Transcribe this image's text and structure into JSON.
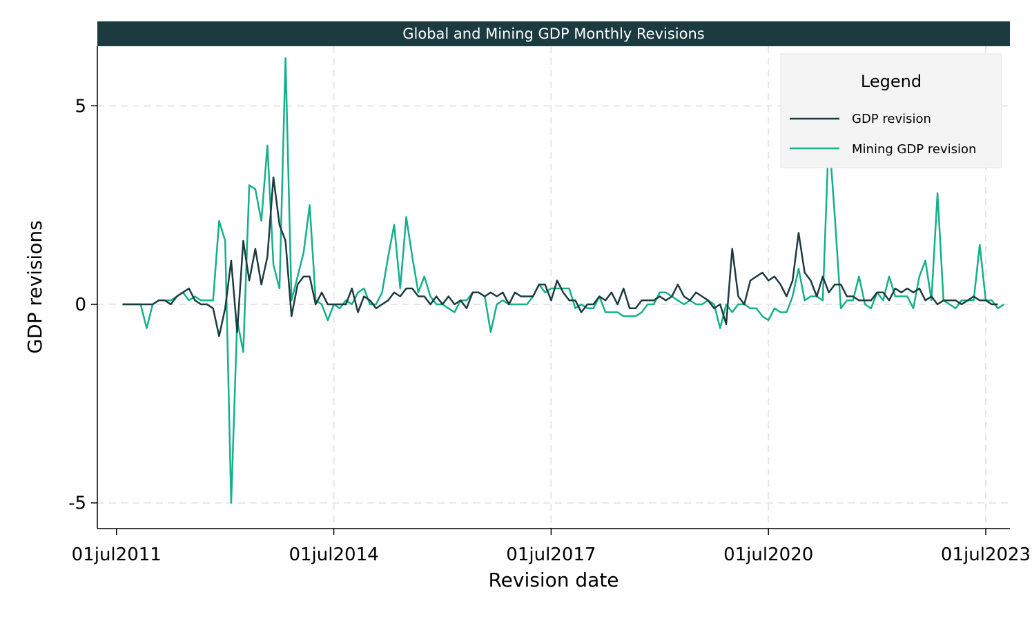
{
  "chart_data": {
    "type": "line",
    "title": "Global and Mining GDP Monthly Revisions",
    "xlabel": "Revision date",
    "ylabel": "GDP revisions",
    "x_ticks": [
      "01jul2011",
      "01jul2014",
      "01jul2017",
      "01jul2020",
      "01jul2023"
    ],
    "y_ticks": [
      "-5",
      "0",
      "5"
    ],
    "ylim": [
      -5.3,
      6.5
    ],
    "xlim": [
      "2011-06",
      "2023-11"
    ],
    "grid": true,
    "legend": {
      "title": "Legend",
      "position": "top-right"
    },
    "colors": {
      "title_bar": "#1b3b40",
      "gdp": "#1b3b40",
      "mining": "#13b089",
      "grid": "#e6e6e6",
      "legend_bg": "#f4f4f4"
    },
    "series": [
      {
        "name": "GDP revision",
        "key": "gdp",
        "points": [
          [
            "2011-08",
            0
          ],
          [
            "2011-09",
            0
          ],
          [
            "2011-10",
            0
          ],
          [
            "2011-11",
            0
          ],
          [
            "2011-12",
            0
          ],
          [
            "2012-01",
            0
          ],
          [
            "2012-02",
            0.1
          ],
          [
            "2012-03",
            0.1
          ],
          [
            "2012-04",
            0
          ],
          [
            "2012-05",
            0.2
          ],
          [
            "2012-06",
            0.3
          ],
          [
            "2012-07",
            0.4
          ],
          [
            "2012-08",
            0.1
          ],
          [
            "2012-09",
            0
          ],
          [
            "2012-10",
            0
          ],
          [
            "2012-11",
            -0.1
          ],
          [
            "2012-12",
            -0.8
          ],
          [
            "2013-01",
            -0.1
          ],
          [
            "2013-02",
            1.1
          ],
          [
            "2013-03",
            -0.7
          ],
          [
            "2013-04",
            1.6
          ],
          [
            "2013-05",
            0.6
          ],
          [
            "2013-06",
            1.4
          ],
          [
            "2013-07",
            0.5
          ],
          [
            "2013-08",
            1.2
          ],
          [
            "2013-09",
            3.2
          ],
          [
            "2013-10",
            2
          ],
          [
            "2013-11",
            1.6
          ],
          [
            "2013-12",
            -0.3
          ],
          [
            "2014-01",
            0.5
          ],
          [
            "2014-02",
            0.7
          ],
          [
            "2014-03",
            0.7
          ],
          [
            "2014-04",
            0
          ],
          [
            "2014-05",
            0.3
          ],
          [
            "2014-06",
            0
          ],
          [
            "2014-07",
            0
          ],
          [
            "2014-08",
            0
          ],
          [
            "2014-09",
            0
          ],
          [
            "2014-10",
            0.4
          ],
          [
            "2014-11",
            -0.2
          ],
          [
            "2014-12",
            0.2
          ],
          [
            "2015-01",
            0.1
          ],
          [
            "2015-02",
            -0.1
          ],
          [
            "2015-03",
            0
          ],
          [
            "2015-04",
            0.1
          ],
          [
            "2015-05",
            0.3
          ],
          [
            "2015-06",
            0.2
          ],
          [
            "2015-07",
            0.4
          ],
          [
            "2015-08",
            0.4
          ],
          [
            "2015-09",
            0.2
          ],
          [
            "2015-10",
            0.2
          ],
          [
            "2015-11",
            0
          ],
          [
            "2015-12",
            0.2
          ],
          [
            "2016-01",
            0
          ],
          [
            "2016-02",
            0.2
          ],
          [
            "2016-03",
            0
          ],
          [
            "2016-04",
            0.1
          ],
          [
            "2016-05",
            -0.1
          ],
          [
            "2016-06",
            0.3
          ],
          [
            "2016-07",
            0.3
          ],
          [
            "2016-08",
            0.2
          ],
          [
            "2016-09",
            0.3
          ],
          [
            "2016-10",
            0.2
          ],
          [
            "2016-11",
            0.3
          ],
          [
            "2016-12",
            0
          ],
          [
            "2017-01",
            0.3
          ],
          [
            "2017-02",
            0.2
          ],
          [
            "2017-03",
            0.2
          ],
          [
            "2017-04",
            0.2
          ],
          [
            "2017-05",
            0.5
          ],
          [
            "2017-06",
            0.5
          ],
          [
            "2017-07",
            0.1
          ],
          [
            "2017-08",
            0.6
          ],
          [
            "2017-09",
            0.3
          ],
          [
            "2017-10",
            0.1
          ],
          [
            "2017-11",
            0.1
          ],
          [
            "2017-12",
            -0.2
          ],
          [
            "2018-01",
            0
          ],
          [
            "2018-02",
            0
          ],
          [
            "2018-03",
            0.2
          ],
          [
            "2018-04",
            0.1
          ],
          [
            "2018-05",
            0.3
          ],
          [
            "2018-06",
            0
          ],
          [
            "2018-07",
            0.4
          ],
          [
            "2018-08",
            -0.1
          ],
          [
            "2018-09",
            -0.1
          ],
          [
            "2018-10",
            0.1
          ],
          [
            "2018-11",
            0.1
          ],
          [
            "2018-12",
            0.1
          ],
          [
            "2019-01",
            0.2
          ],
          [
            "2019-02",
            0.1
          ],
          [
            "2019-03",
            0.2
          ],
          [
            "2019-04",
            0.5
          ],
          [
            "2019-05",
            0.2
          ],
          [
            "2019-06",
            0.1
          ],
          [
            "2019-07",
            0.3
          ],
          [
            "2019-08",
            0.2
          ],
          [
            "2019-09",
            0.1
          ],
          [
            "2019-10",
            -0.1
          ],
          [
            "2019-11",
            0
          ],
          [
            "2019-12",
            -0.5
          ],
          [
            "2020-01",
            1.4
          ],
          [
            "2020-02",
            0.2
          ],
          [
            "2020-03",
            0
          ],
          [
            "2020-04",
            0.6
          ],
          [
            "2020-05",
            0.7
          ],
          [
            "2020-06",
            0.8
          ],
          [
            "2020-07",
            0.6
          ],
          [
            "2020-08",
            0.7
          ],
          [
            "2020-09",
            0.5
          ],
          [
            "2020-10",
            0.2
          ],
          [
            "2020-11",
            0.6
          ],
          [
            "2020-12",
            1.8
          ],
          [
            "2021-01",
            0.8
          ],
          [
            "2021-02",
            0.6
          ],
          [
            "2021-03",
            0.2
          ],
          [
            "2021-04",
            0.7
          ],
          [
            "2021-05",
            0.3
          ],
          [
            "2021-06",
            0.5
          ],
          [
            "2021-07",
            0.5
          ],
          [
            "2021-08",
            0.2
          ],
          [
            "2021-09",
            0.2
          ],
          [
            "2021-10",
            0.1
          ],
          [
            "2021-11",
            0.1
          ],
          [
            "2021-12",
            0.1
          ],
          [
            "2022-01",
            0.3
          ],
          [
            "2022-02",
            0.3
          ],
          [
            "2022-03",
            0.1
          ],
          [
            "2022-04",
            0.4
          ],
          [
            "2022-05",
            0.3
          ],
          [
            "2022-06",
            0.4
          ],
          [
            "2022-07",
            0.3
          ],
          [
            "2022-08",
            0.4
          ],
          [
            "2022-09",
            0.1
          ],
          [
            "2022-10",
            0.2
          ],
          [
            "2022-11",
            0
          ],
          [
            "2022-12",
            0.1
          ],
          [
            "2023-01",
            0.1
          ],
          [
            "2023-02",
            0.1
          ],
          [
            "2023-03",
            0
          ],
          [
            "2023-04",
            0.1
          ],
          [
            "2023-05",
            0.2
          ],
          [
            "2023-06",
            0.1
          ],
          [
            "2023-07",
            0.1
          ],
          [
            "2023-08",
            0
          ],
          [
            "2023-09",
            0
          ]
        ]
      },
      {
        "name": "Mining GDP revision",
        "key": "mining",
        "points": [
          [
            "2011-08",
            0
          ],
          [
            "2011-09",
            0
          ],
          [
            "2011-10",
            0
          ],
          [
            "2011-11",
            0
          ],
          [
            "2011-12",
            -0.6
          ],
          [
            "2012-01",
            0
          ],
          [
            "2012-02",
            0.1
          ],
          [
            "2012-03",
            0.1
          ],
          [
            "2012-04",
            0.1
          ],
          [
            "2012-05",
            0.2
          ],
          [
            "2012-06",
            0.3
          ],
          [
            "2012-07",
            0.1
          ],
          [
            "2012-08",
            0.2
          ],
          [
            "2012-09",
            0.1
          ],
          [
            "2012-10",
            0.1
          ],
          [
            "2012-11",
            0.1
          ],
          [
            "2012-12",
            2.1
          ],
          [
            "2013-01",
            1.6
          ],
          [
            "2013-02",
            -5
          ],
          [
            "2013-03",
            -0.4
          ],
          [
            "2013-04",
            -1.2
          ],
          [
            "2013-05",
            3
          ],
          [
            "2013-06",
            2.9
          ],
          [
            "2013-07",
            2.1
          ],
          [
            "2013-08",
            4
          ],
          [
            "2013-09",
            1
          ],
          [
            "2013-10",
            0.4
          ],
          [
            "2013-11",
            6.2
          ],
          [
            "2013-12",
            0.1
          ],
          [
            "2014-01",
            0.7
          ],
          [
            "2014-02",
            1.3
          ],
          [
            "2014-03",
            2.5
          ],
          [
            "2014-04",
            0.1
          ],
          [
            "2014-05",
            0
          ],
          [
            "2014-06",
            -0.4
          ],
          [
            "2014-07",
            0
          ],
          [
            "2014-08",
            -0.1
          ],
          [
            "2014-09",
            0.1
          ],
          [
            "2014-10",
            0
          ],
          [
            "2014-11",
            0.3
          ],
          [
            "2014-12",
            0.4
          ],
          [
            "2015-01",
            0
          ],
          [
            "2015-02",
            0
          ],
          [
            "2015-03",
            0.3
          ],
          [
            "2015-04",
            1.2
          ],
          [
            "2015-05",
            2
          ],
          [
            "2015-06",
            0.4
          ],
          [
            "2015-07",
            2.2
          ],
          [
            "2015-08",
            1.2
          ],
          [
            "2015-09",
            0.3
          ],
          [
            "2015-10",
            0.7
          ],
          [
            "2015-11",
            0.2
          ],
          [
            "2015-12",
            0
          ],
          [
            "2016-01",
            0
          ],
          [
            "2016-02",
            -0.1
          ],
          [
            "2016-03",
            -0.2
          ],
          [
            "2016-04",
            0.1
          ],
          [
            "2016-05",
            0.1
          ],
          [
            "2016-06",
            0.3
          ],
          [
            "2016-07",
            0.3
          ],
          [
            "2016-08",
            0.2
          ],
          [
            "2016-09",
            -0.7
          ],
          [
            "2016-10",
            0
          ],
          [
            "2016-11",
            0.1
          ],
          [
            "2016-12",
            0
          ],
          [
            "2017-01",
            0
          ],
          [
            "2017-02",
            0
          ],
          [
            "2017-03",
            0
          ],
          [
            "2017-04",
            0.2
          ],
          [
            "2017-05",
            0.5
          ],
          [
            "2017-06",
            0.3
          ],
          [
            "2017-07",
            0.4
          ],
          [
            "2017-08",
            0.4
          ],
          [
            "2017-09",
            0.4
          ],
          [
            "2017-10",
            0.4
          ],
          [
            "2017-11",
            -0.1
          ],
          [
            "2017-12",
            0
          ],
          [
            "2018-01",
            -0.1
          ],
          [
            "2018-02",
            -0.1
          ],
          [
            "2018-03",
            0.2
          ],
          [
            "2018-04",
            -0.2
          ],
          [
            "2018-05",
            -0.2
          ],
          [
            "2018-06",
            -0.2
          ],
          [
            "2018-07",
            -0.3
          ],
          [
            "2018-08",
            -0.3
          ],
          [
            "2018-09",
            -0.3
          ],
          [
            "2018-10",
            -0.2
          ],
          [
            "2018-11",
            0
          ],
          [
            "2018-12",
            0
          ],
          [
            "2019-01",
            0.3
          ],
          [
            "2019-02",
            0.3
          ],
          [
            "2019-03",
            0.2
          ],
          [
            "2019-04",
            0.1
          ],
          [
            "2019-05",
            0
          ],
          [
            "2019-06",
            0.1
          ],
          [
            "2019-07",
            0
          ],
          [
            "2019-08",
            0
          ],
          [
            "2019-09",
            0.1
          ],
          [
            "2019-10",
            0
          ],
          [
            "2019-11",
            -0.6
          ],
          [
            "2019-12",
            0
          ],
          [
            "2020-01",
            -0.2
          ],
          [
            "2020-02",
            0
          ],
          [
            "2020-03",
            0
          ],
          [
            "2020-04",
            -0.1
          ],
          [
            "2020-05",
            -0.1
          ],
          [
            "2020-06",
            -0.3
          ],
          [
            "2020-07",
            -0.4
          ],
          [
            "2020-08",
            -0.1
          ],
          [
            "2020-09",
            -0.2
          ],
          [
            "2020-10",
            -0.2
          ],
          [
            "2020-11",
            0.2
          ],
          [
            "2020-12",
            0.9
          ],
          [
            "2021-01",
            0.1
          ],
          [
            "2021-02",
            0.2
          ],
          [
            "2021-03",
            0.2
          ],
          [
            "2021-04",
            0.1
          ],
          [
            "2021-05",
            4.3
          ],
          [
            "2021-06",
            2.2
          ],
          [
            "2021-07",
            -0.1
          ],
          [
            "2021-08",
            0.1
          ],
          [
            "2021-09",
            0.1
          ],
          [
            "2021-10",
            0.7
          ],
          [
            "2021-11",
            0
          ],
          [
            "2021-12",
            -0.1
          ],
          [
            "2022-01",
            0.3
          ],
          [
            "2022-02",
            0.1
          ],
          [
            "2022-03",
            0.7
          ],
          [
            "2022-04",
            0.2
          ],
          [
            "2022-05",
            0.2
          ],
          [
            "2022-06",
            0.2
          ],
          [
            "2022-07",
            -0.1
          ],
          [
            "2022-08",
            0.7
          ],
          [
            "2022-09",
            1.1
          ],
          [
            "2022-10",
            0.1
          ],
          [
            "2022-11",
            2.8
          ],
          [
            "2022-12",
            0.1
          ],
          [
            "2023-01",
            0
          ],
          [
            "2023-02",
            -0.1
          ],
          [
            "2023-03",
            0.1
          ],
          [
            "2023-04",
            0.1
          ],
          [
            "2023-05",
            0.1
          ],
          [
            "2023-06",
            1.5
          ],
          [
            "2023-07",
            0.1
          ],
          [
            "2023-08",
            0.1
          ],
          [
            "2023-09",
            -0.1
          ],
          [
            "2023-10",
            0
          ]
        ]
      }
    ]
  }
}
